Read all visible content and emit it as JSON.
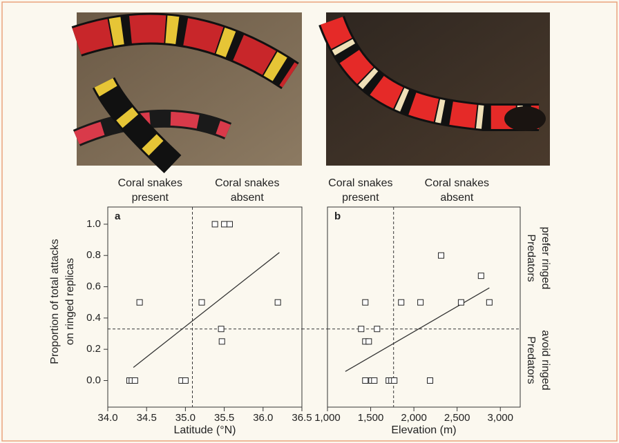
{
  "chart_data": [
    {
      "type": "scatter",
      "panel_label": "a",
      "header_left": [
        "Coral snakes",
        "present"
      ],
      "header_right": [
        "Coral snakes",
        "absent"
      ],
      "x_label": "Latitude (°N)",
      "y_label": [
        "Proportion of total attacks",
        "on ringed replicas"
      ],
      "x": [
        34.28,
        34.31,
        34.35,
        34.41,
        34.95,
        35.0,
        35.21,
        35.38,
        35.5,
        35.57,
        35.46,
        35.47,
        36.19
      ],
      "y": [
        0,
        0,
        0,
        0.5,
        0,
        0,
        0.5,
        1.0,
        1.0,
        1.0,
        0.33,
        0.25,
        0.5
      ],
      "trend_line": {
        "x": [
          34.33,
          36.21
        ],
        "y": [
          0.084,
          0.819
        ]
      },
      "reference_x": 35.09,
      "reference_y": 0.33,
      "xlim": [
        34.0,
        36.5
      ],
      "ylim": [
        -0.17,
        1.11
      ],
      "xticks": [
        {
          "value": 34.0,
          "label": "34.0"
        },
        34.5,
        {
          "value": 35.0,
          "label": "35.0"
        },
        35.5,
        {
          "value": 36.0,
          "label": "36.0"
        },
        36.5
      ],
      "yticks": [
        {
          "value": 0,
          "label": "0.0"
        },
        0.2,
        0.4,
        0.6,
        0.8,
        {
          "value": 1.0,
          "label": "1.0"
        }
      ]
    },
    {
      "type": "scatter",
      "panel_label": "b",
      "header_left": [
        "Coral snakes",
        "present"
      ],
      "header_right": [
        "Coral snakes",
        "absent"
      ],
      "x_label": "Elevation (m)",
      "side_label_top": [
        "Predators",
        "prefer ringed"
      ],
      "side_label_bottom": [
        "Predators",
        "avoid ringed"
      ],
      "x": [
        1438,
        1390,
        1438,
        1478,
        1574,
        1438,
        1510,
        1542,
        1709,
        1741,
        1773,
        1853,
        2076,
        2187,
        2315,
        2546,
        2777,
        2873
      ],
      "y": [
        0.5,
        0.33,
        0.25,
        0.25,
        0.33,
        0,
        0,
        0,
        0,
        0,
        0,
        0.5,
        0.5,
        0,
        0.8,
        0.5,
        0.67,
        0.5
      ],
      "trend_line": {
        "x": [
          1207,
          2873
        ],
        "y": [
          0.058,
          0.593
        ]
      },
      "reference_x": 1765,
      "reference_y": 0.33,
      "xlim": [
        1000,
        3230
      ],
      "ylim": [
        -0.17,
        1.11
      ],
      "xticks": [
        {
          "value": 1000,
          "label": "1,000"
        },
        {
          "value": 1500,
          "label": "1,500"
        },
        {
          "value": 2000,
          "label": "2,000"
        },
        {
          "value": 2500,
          "label": "2,500"
        },
        {
          "value": 3000,
          "label": "3,000"
        }
      ]
    }
  ]
}
